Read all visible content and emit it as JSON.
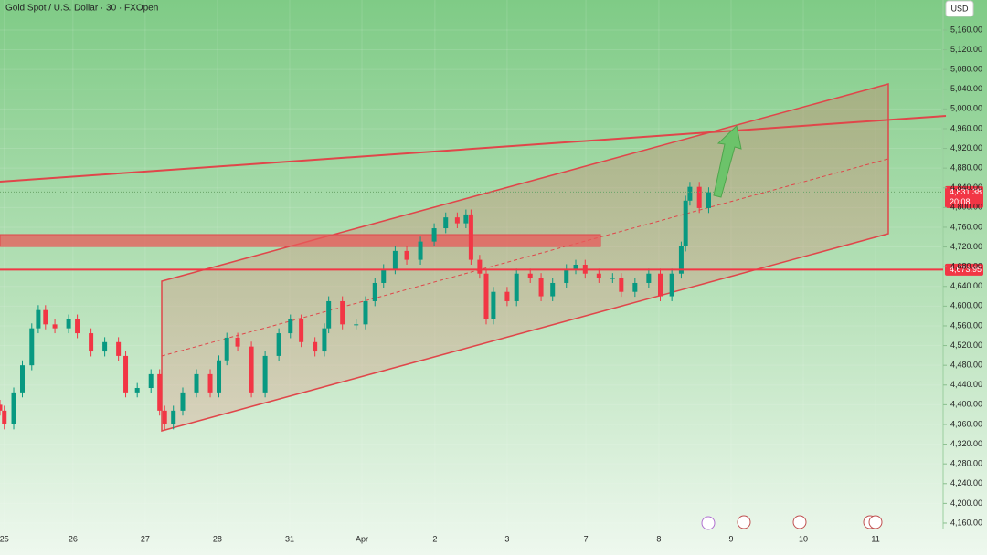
{
  "chart_data": {
    "type": "candlestick",
    "title": "Gold Spot / U.S. Dollar · 30 · FXOpen",
    "currency": "USD",
    "up_color": "#089981",
    "down_color": "#f23645",
    "x": [
      -0.06,
      0,
      0.13,
      0.25,
      0.38,
      0.47,
      0.57,
      0.7,
      0.89,
      1.01,
      1.2,
      1.39,
      1.58,
      1.68,
      1.84,
      2.03,
      2.15,
      2.22,
      2.34,
      2.47,
      2.66,
      2.85,
      2.97,
      3.08,
      3.23,
      3.42,
      3.61,
      3.8,
      3.96,
      4.11,
      4.3,
      4.43,
      4.49,
      4.68,
      4.87,
      5.0,
      5.13,
      5.25,
      5.41,
      5.57,
      5.76,
      5.95,
      6.11,
      6.27,
      6.39,
      6.46,
      6.58,
      6.67,
      6.77,
      6.96,
      7.09,
      7.28,
      7.43,
      7.59,
      7.78,
      7.91,
      8.04,
      8.23,
      8.42,
      8.54,
      8.73,
      8.92,
      9.08,
      9.24,
      9.37,
      9.43,
      9.49,
      9.62,
      9.75
    ],
    "open": [
      4400,
      4388,
      4360,
      4425,
      4480,
      4555,
      4592,
      4563,
      4555,
      4573,
      4545,
      4508,
      4527,
      4499,
      4425,
      4434,
      4462,
      4388,
      4360,
      4388,
      4425,
      4462,
      4425,
      4490,
      4536,
      4518,
      4425,
      4499,
      4545,
      4573,
      4527,
      4508,
      4555,
      4610,
      4563,
      4563,
      4610,
      4647,
      4675,
      4712,
      4694,
      4731,
      4758,
      4780,
      4768,
      4786,
      4694,
      4666,
      4573,
      4629,
      4610,
      4666,
      4657,
      4620,
      4647,
      4675,
      4684,
      4666,
      4657,
      4657,
      4629,
      4647,
      4666,
      4620,
      4666,
      4721,
      4814,
      4842,
      4799
    ],
    "high": [
      4410,
      4398,
      4435,
      4490,
      4565,
      4602,
      4602,
      4573,
      4583,
      4583,
      4555,
      4537,
      4537,
      4509,
      4444,
      4472,
      4472,
      4398,
      4398,
      4435,
      4472,
      4472,
      4500,
      4546,
      4546,
      4528,
      4509,
      4555,
      4583,
      4583,
      4537,
      4565,
      4620,
      4620,
      4573,
      4620,
      4657,
      4685,
      4722,
      4722,
      4741,
      4768,
      4790,
      4790,
      4796,
      4796,
      4704,
      4676,
      4639,
      4639,
      4676,
      4676,
      4667,
      4657,
      4685,
      4694,
      4694,
      4676,
      4667,
      4667,
      4657,
      4676,
      4676,
      4676,
      4731,
      4824,
      4852,
      4852,
      4841
    ],
    "low": [
      4378,
      4350,
      4350,
      4415,
      4470,
      4545,
      4553,
      4545,
      4545,
      4535,
      4498,
      4498,
      4489,
      4415,
      4415,
      4424,
      4378,
      4350,
      4350,
      4378,
      4415,
      4415,
      4415,
      4480,
      4508,
      4415,
      4415,
      4489,
      4535,
      4517,
      4498,
      4498,
      4545,
      4553,
      4553,
      4553,
      4600,
      4637,
      4665,
      4684,
      4684,
      4721,
      4748,
      4758,
      4758,
      4684,
      4656,
      4563,
      4563,
      4600,
      4600,
      4647,
      4610,
      4610,
      4637,
      4665,
      4656,
      4647,
      4647,
      4619,
      4619,
      4637,
      4610,
      4610,
      4656,
      4711,
      4804,
      4789,
      4789
    ],
    "close": [
      4388,
      4360,
      4425,
      4480,
      4555,
      4592,
      4563,
      4555,
      4573,
      4545,
      4508,
      4527,
      4499,
      4425,
      4434,
      4462,
      4388,
      4360,
      4388,
      4425,
      4462,
      4425,
      4490,
      4536,
      4518,
      4425,
      4499,
      4545,
      4573,
      4527,
      4508,
      4555,
      4610,
      4563,
      4563,
      4610,
      4647,
      4675,
      4712,
      4694,
      4731,
      4758,
      4780,
      4768,
      4786,
      4694,
      4666,
      4573,
      4629,
      4610,
      4666,
      4657,
      4620,
      4647,
      4675,
      4684,
      4666,
      4657,
      4657,
      4629,
      4647,
      4666,
      4620,
      4666,
      4721,
      4814,
      4842,
      4799,
      4831
    ],
    "xlim": [
      -0.06,
      12.97
    ],
    "xticks": [
      {
        "value": 0,
        "label": "25"
      },
      {
        "value": 0.95,
        "label": "26"
      },
      {
        "value": 1.95,
        "label": "27"
      },
      {
        "value": 2.95,
        "label": "28"
      },
      {
        "value": 3.95,
        "label": "31"
      },
      {
        "value": 4.95,
        "label": "Apr"
      },
      {
        "value": 5.96,
        "label": "2"
      },
      {
        "value": 6.96,
        "label": "3"
      },
      {
        "value": 8.05,
        "label": "7"
      },
      {
        "value": 9.06,
        "label": "8"
      },
      {
        "value": 10.06,
        "label": "9"
      },
      {
        "value": 11.06,
        "label": "10"
      },
      {
        "value": 12.06,
        "label": "11"
      }
    ],
    "ylim": [
      4147,
      5221
    ],
    "yticks": [
      {
        "value": 4160,
        "label": "4,160.00"
      },
      {
        "value": 4200,
        "label": "4,200.00"
      },
      {
        "value": 4240,
        "label": "4,240.00"
      },
      {
        "value": 4280,
        "label": "4,280.00"
      },
      {
        "value": 4320,
        "label": "4,320.00"
      },
      {
        "value": 4360,
        "label": "4,360.00"
      },
      {
        "value": 4400,
        "label": "4,400.00"
      },
      {
        "value": 4440,
        "label": "4,440.00"
      },
      {
        "value": 4480,
        "label": "4,480.00"
      },
      {
        "value": 4520,
        "label": "4,520.00"
      },
      {
        "value": 4560,
        "label": "4,560.00"
      },
      {
        "value": 4600,
        "label": "4,600.00"
      },
      {
        "value": 4640,
        "label": "4,640.00"
      },
      {
        "value": 4680,
        "label": "4,680.00"
      },
      {
        "value": 4720,
        "label": "4,720.00"
      },
      {
        "value": 4760,
        "label": "4,760.00"
      },
      {
        "value": 4800,
        "label": "4,800.00"
      },
      {
        "value": 4840,
        "label": "4,840.00"
      },
      {
        "value": 4880,
        "label": "4,880.00"
      },
      {
        "value": 4920,
        "label": "4,920.00"
      },
      {
        "value": 4960,
        "label": "4,960.00"
      },
      {
        "value": 5000,
        "label": "5,000.00"
      },
      {
        "value": 5040,
        "label": "5,040.00"
      },
      {
        "value": 5080,
        "label": "5,080.00"
      },
      {
        "value": 5120,
        "label": "5,120.00"
      },
      {
        "value": 5160,
        "label": "5,160.00"
      }
    ],
    "price_markers": [
      {
        "value": 4831.38,
        "label": "4,831.38",
        "countdown": "20:08",
        "color": "#f23645",
        "line": "dotted"
      },
      {
        "value": 4673.95,
        "label": "4,673.95",
        "color": "#f23645",
        "line": "solid"
      }
    ]
  }
}
